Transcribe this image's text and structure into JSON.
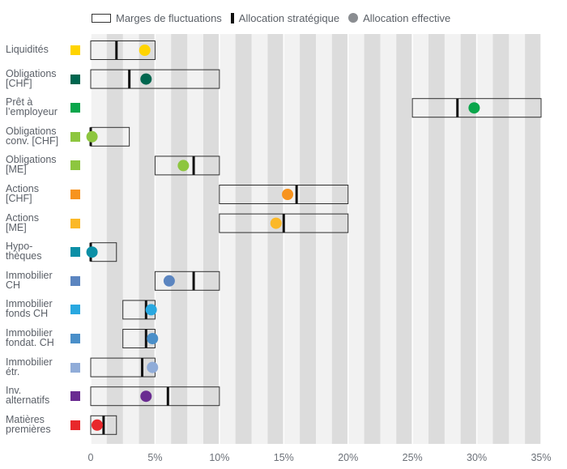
{
  "legend": {
    "range_label": "Marges de fluctuations",
    "strategic_label": "Allocation stratégique",
    "effective_label": "Allocation effective"
  },
  "chart_data": {
    "type": "bullet",
    "xlim": [
      0,
      35
    ],
    "ticks": [
      "0",
      "5%",
      "10%",
      "15%",
      "20%",
      "25%",
      "30%",
      "35%"
    ],
    "tick_values": [
      0,
      5,
      10,
      15,
      20,
      25,
      30,
      35
    ],
    "grid": "alternating vertical bands",
    "legend_position": "top",
    "rows": [
      {
        "label": "Liquidités",
        "color": "#ffd400",
        "min": 0,
        "max": 5,
        "strategic": 2,
        "effective": 4.2
      },
      {
        "label": "Obligations\n[CHF]",
        "color": "#00664f",
        "min": 0,
        "max": 10,
        "strategic": 3,
        "effective": 4.3
      },
      {
        "label": "Prêt à\nl’employeur",
        "color": "#0aa64b",
        "min": 25,
        "max": 35,
        "strategic": 28.5,
        "effective": 29.8
      },
      {
        "label": "Obligations\nconv. [CHF]",
        "color": "#8dc63f",
        "min": 0,
        "max": 3,
        "strategic": 0,
        "effective": 0.1
      },
      {
        "label": "Obligations\n[ME]",
        "color": "#8dc63f",
        "min": 5,
        "max": 10,
        "strategic": 8,
        "effective": 7.2
      },
      {
        "label": "Actions\n[CHF]",
        "color": "#f7931e",
        "min": 10,
        "max": 20,
        "strategic": 16,
        "effective": 15.3
      },
      {
        "label": "Actions\n[ME]",
        "color": "#fbb827",
        "min": 10,
        "max": 20,
        "strategic": 15,
        "effective": 14.4
      },
      {
        "label": "Hypo-\nthèques",
        "color": "#0b8fa6",
        "min": 0,
        "max": 2,
        "strategic": 0,
        "effective": 0.1
      },
      {
        "label": "Immobilier\nCH",
        "color": "#5b85c0",
        "min": 5,
        "max": 10,
        "strategic": 8,
        "effective": 6.1
      },
      {
        "label": "Immobilier\nfonds CH",
        "color": "#29a8e0",
        "min": 2.5,
        "max": 5,
        "strategic": 4.3,
        "effective": 4.7
      },
      {
        "label": "Immobilier\nfondat. CH",
        "color": "#4a8fc9",
        "min": 2.5,
        "max": 5,
        "strategic": 4.3,
        "effective": 4.8
      },
      {
        "label": "Immobilier\nétr.",
        "color": "#90acd8",
        "min": 0,
        "max": 5,
        "strategic": 4,
        "effective": 4.8
      },
      {
        "label": "Inv.\nalternatifs",
        "color": "#6a2c91",
        "min": 0,
        "max": 10,
        "strategic": 6,
        "effective": 4.3
      },
      {
        "label": "Matières\npremières",
        "color": "#e8282b",
        "min": 0,
        "max": 2,
        "strategic": 1,
        "effective": 0.5
      }
    ]
  }
}
